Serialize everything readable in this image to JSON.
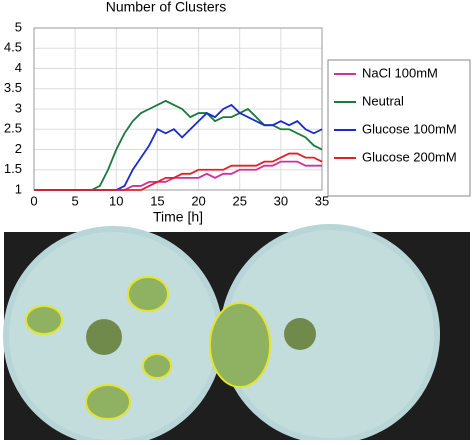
{
  "chart_data": {
    "type": "line",
    "title": "Number of Clusters",
    "x_label": "Time [h]",
    "x": [
      0,
      1,
      2,
      3,
      4,
      5,
      6,
      7,
      8,
      9,
      10,
      11,
      12,
      13,
      14,
      15,
      16,
      17,
      18,
      19,
      20,
      21,
      22,
      23,
      24,
      25,
      26,
      27,
      28,
      29,
      30,
      31,
      32,
      33,
      34,
      35
    ],
    "xlim": [
      0,
      35
    ],
    "xticks": [
      0,
      5,
      10,
      15,
      20,
      25,
      30,
      35
    ],
    "ylim": [
      1,
      5
    ],
    "yticks": [
      1,
      1.5,
      2,
      2.5,
      3,
      3.5,
      4,
      4.5,
      5
    ],
    "grid": true,
    "legend": "right",
    "series": [
      {
        "name": "NaCl 100mM",
        "color": "#d0309c",
        "values": [
          1,
          1,
          1,
          1,
          1,
          1,
          1,
          1,
          1,
          1,
          1,
          1,
          1.1,
          1.1,
          1.2,
          1.2,
          1.2,
          1.3,
          1.3,
          1.3,
          1.3,
          1.4,
          1.3,
          1.4,
          1.4,
          1.5,
          1.5,
          1.5,
          1.6,
          1.6,
          1.7,
          1.7,
          1.7,
          1.6,
          1.6,
          1.6
        ]
      },
      {
        "name": "Neutral",
        "color": "#1a7a3a",
        "values": [
          1,
          1,
          1,
          1,
          1,
          1,
          1,
          1,
          1.1,
          1.5,
          2.0,
          2.4,
          2.7,
          2.9,
          3.0,
          3.1,
          3.2,
          3.1,
          3.0,
          2.8,
          2.9,
          2.9,
          2.7,
          2.8,
          2.8,
          2.9,
          3.0,
          2.8,
          2.6,
          2.6,
          2.5,
          2.5,
          2.4,
          2.3,
          2.1,
          2.0
        ]
      },
      {
        "name": "Glucose 100mM",
        "color": "#1a2bcc",
        "values": [
          1,
          1,
          1,
          1,
          1,
          1,
          1,
          1,
          1,
          1,
          1,
          1.1,
          1.5,
          1.8,
          2.1,
          2.5,
          2.4,
          2.5,
          2.3,
          2.5,
          2.7,
          2.9,
          2.8,
          3.0,
          3.1,
          2.9,
          2.8,
          2.7,
          2.6,
          2.6,
          2.7,
          2.6,
          2.7,
          2.5,
          2.4,
          2.5
        ]
      },
      {
        "name": "Glucose 200mM",
        "color": "#e0202a",
        "values": [
          1,
          1,
          1,
          1,
          1,
          1,
          1,
          1,
          1,
          1,
          1,
          1,
          1,
          1,
          1.1,
          1.2,
          1.3,
          1.3,
          1.4,
          1.4,
          1.5,
          1.5,
          1.5,
          1.5,
          1.6,
          1.6,
          1.6,
          1.6,
          1.7,
          1.7,
          1.8,
          1.9,
          1.9,
          1.8,
          1.8,
          1.7
        ]
      }
    ]
  }
}
